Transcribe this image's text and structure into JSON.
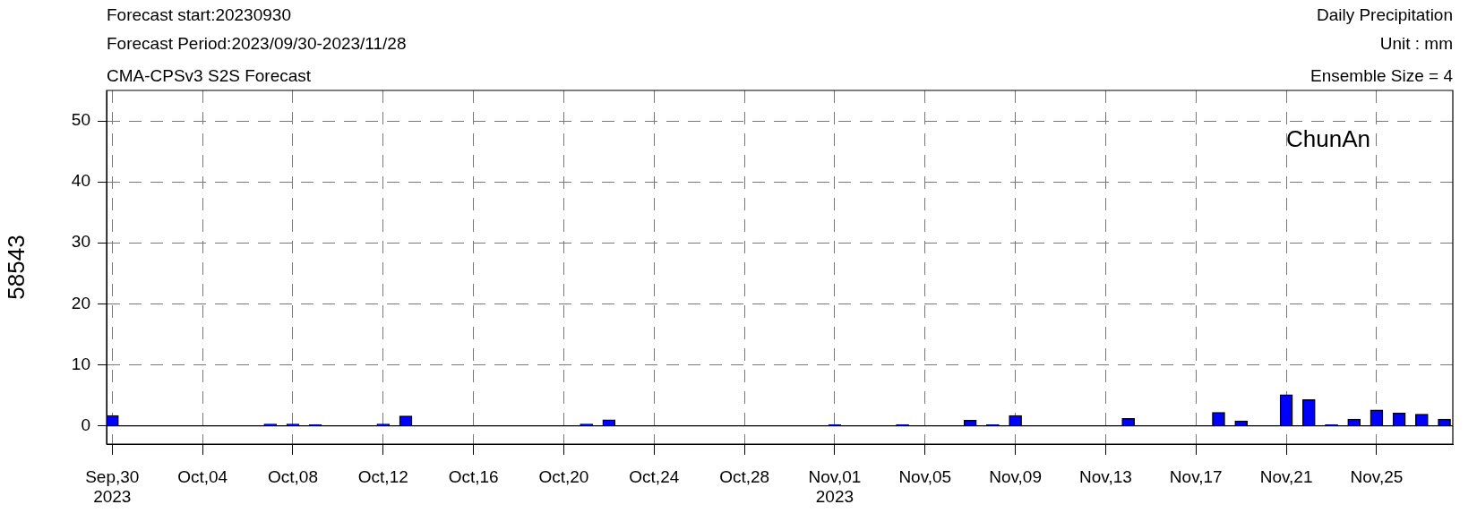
{
  "chart_data": {
    "type": "bar",
    "title": "Forecast start:20230930",
    "subtitle": "Forecast Period:2023/09/30-2023/11/28",
    "ylabel": "58543",
    "annotations": [
      "CMA-CPSv3 S2S Forecast",
      "Daily Precipitation",
      "Unit : mm",
      "Ensemble Size = 4",
      "ChunAn"
    ],
    "series": [
      {
        "color": "#0000ff",
        "x": [
          "2023-09-30",
          "2023-10-07",
          "2023-10-08",
          "2023-10-09",
          "2023-10-12",
          "2023-10-13",
          "2023-10-21",
          "2023-10-22",
          "2023-11-01",
          "2023-11-04",
          "2023-11-07",
          "2023-11-08",
          "2023-11-09",
          "2023-11-14",
          "2023-11-18",
          "2023-11-19",
          "2023-11-21",
          "2023-11-22",
          "2023-11-23",
          "2023-11-24",
          "2023-11-25",
          "2023-11-26",
          "2023-11-27",
          "2023-11-28"
        ],
        "values": [
          1.7,
          0.3,
          0.3,
          0.2,
          0.3,
          1.6,
          0.3,
          1.0,
          0.2,
          0.2,
          0.9,
          0.2,
          1.7,
          1.2,
          2.2,
          0.8,
          5.1,
          4.3,
          0.2,
          1.1,
          2.6,
          2.1,
          1.9,
          1.1
        ]
      }
    ],
    "xlim": [
      "2023-09-29T18:00",
      "2023-11-28T09:00"
    ],
    "xticks": [
      {
        "value": "2023-09-30",
        "label": "Sep,30\n2023"
      },
      {
        "value": "2023-10-04",
        "label": "Oct,04"
      },
      {
        "value": "2023-10-08",
        "label": "Oct,08"
      },
      {
        "value": "2023-10-12",
        "label": "Oct,12"
      },
      {
        "value": "2023-10-16",
        "label": "Oct,16"
      },
      {
        "value": "2023-10-20",
        "label": "Oct,20"
      },
      {
        "value": "2023-10-24",
        "label": "Oct,24"
      },
      {
        "value": "2023-10-28",
        "label": "Oct,28"
      },
      {
        "value": "2023-11-01",
        "label": "Nov,01\n2023"
      },
      {
        "value": "2023-11-05",
        "label": "Nov,05"
      },
      {
        "value": "2023-11-09",
        "label": "Nov,09"
      },
      {
        "value": "2023-11-13",
        "label": "Nov,13"
      },
      {
        "value": "2023-11-17",
        "label": "Nov,17"
      },
      {
        "value": "2023-11-21",
        "label": "Nov,21"
      },
      {
        "value": "2023-11-25",
        "label": "Nov,25"
      }
    ],
    "ylim": [
      -3,
      55
    ],
    "yticks": [
      0,
      10,
      20,
      30,
      40,
      50
    ],
    "ref_lines": [
      {
        "axis": "y",
        "value": 0
      }
    ],
    "grid": true,
    "legend": false
  }
}
